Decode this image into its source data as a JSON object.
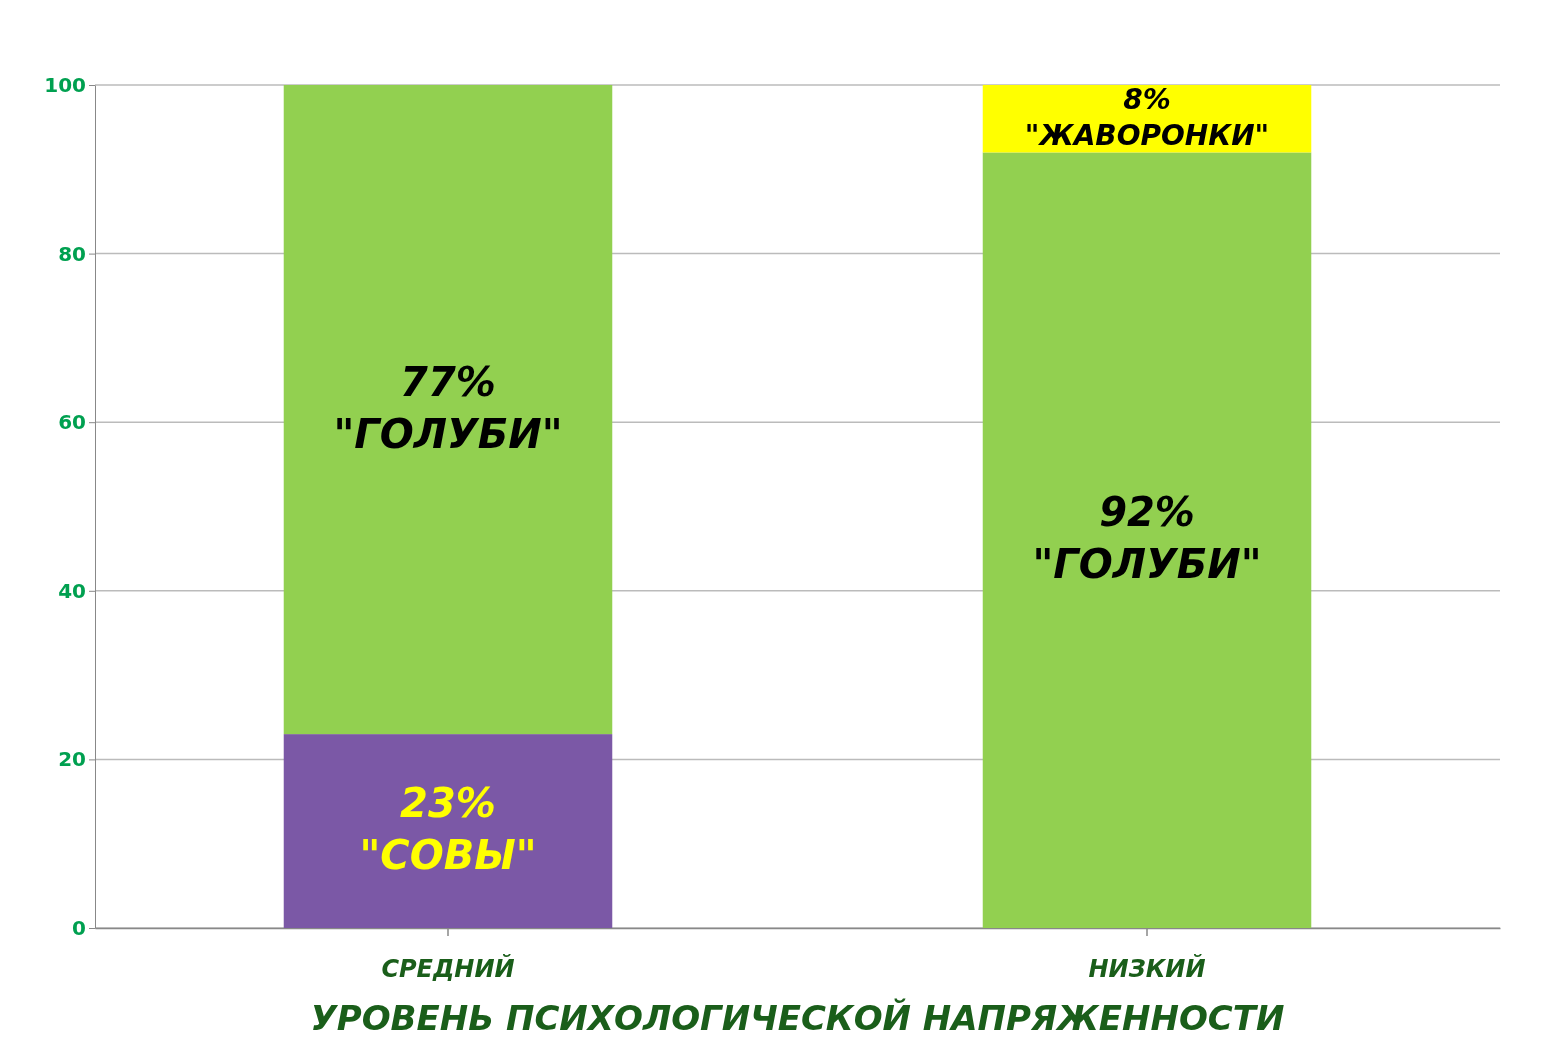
{
  "chart_data": {
    "type": "bar",
    "stacked": true,
    "xlabel": "УРОВЕНЬ ПСИХОЛОГИЧЕСКОЙ НАПРЯЖЕННОСТИ",
    "categories": [
      "СРЕДНИЙ",
      "НИЗКИЙ"
    ],
    "series": [
      {
        "name": "\"СОВЫ\"",
        "color": "#7b58a6",
        "values": [
          23,
          null
        ],
        "value_labels": [
          "23%",
          null
        ]
      },
      {
        "name": "\"ГОЛУБИ\"",
        "color": "#92d050",
        "values": [
          77,
          92
        ],
        "value_labels": [
          "77%",
          "92%"
        ]
      },
      {
        "name": "\"ЖАВОРОНКИ\"",
        "color": "#ffff00",
        "values": [
          null,
          8
        ],
        "value_labels": [
          null,
          "8%"
        ]
      }
    ],
    "ylim": [
      0,
      100
    ],
    "yticks": [
      0,
      20,
      40,
      60,
      80,
      100
    ],
    "grid": "y",
    "legend": false
  }
}
